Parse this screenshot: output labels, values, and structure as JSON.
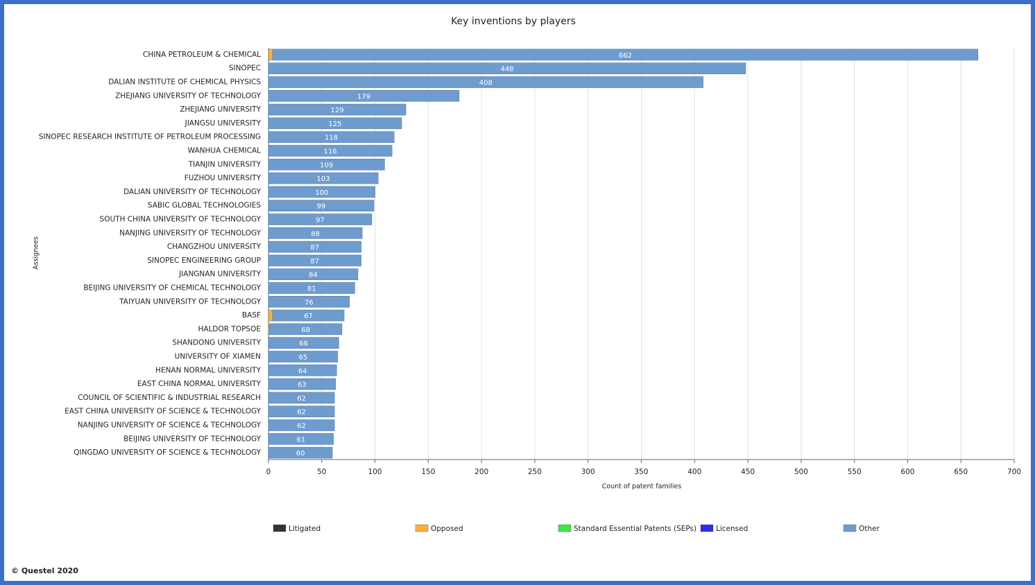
{
  "chart_data": {
    "type": "stacked-bar-horizontal",
    "title": "Key inventions by players",
    "x_label": "Count of patent families",
    "y_label": "Assignees",
    "footer": "© Questel 2020",
    "categories": [
      "CHINA PETROLEUM & CHEMICAL",
      "SINOPEC",
      "DALIAN INSTITUTE OF CHEMICAL PHYSICS",
      "ZHEJIANG UNIVERSITY OF TECHNOLOGY",
      "ZHEJIANG UNIVERSITY",
      "JIANGSU UNIVERSITY",
      "SINOPEC RESEARCH INSTITUTE OF PETROLEUM PROCESSING",
      "WANHUA CHEMICAL",
      "TIANJIN UNIVERSITY",
      "FUZHOU UNIVERSITY",
      "DALIAN UNIVERSITY OF TECHNOLOGY",
      "SABIC GLOBAL TECHNOLOGIES",
      "SOUTH CHINA UNIVERSITY OF TECHNOLOGY",
      "NANJING UNIVERSITY OF TECHNOLOGY",
      "CHANGZHOU UNIVERSITY",
      "SINOPEC ENGINEERING GROUP",
      "JIANGNAN UNIVERSITY",
      "BEIJING UNIVERSITY OF CHEMICAL TECHNOLOGY",
      "TAIYUAN UNIVERSITY OF TECHNOLOGY",
      "BASF",
      "HALDOR TOPSOE",
      "SHANDONG UNIVERSITY",
      "UNIVERSITY OF XIAMEN",
      "HENAN NORMAL UNIVERSITY",
      "EAST CHINA NORMAL UNIVERSITY",
      "COUNCIL OF SCIENTIFIC & INDUSTRIAL RESEARCH",
      "EAST CHINA UNIVERSITY OF SCIENCE & TECHNOLOGY",
      "NANJING UNIVERSITY OF SCIENCE & TECHNOLOGY",
      "BEIJING UNIVERSITY OF TECHNOLOGY",
      "QINGDAO UNIVERSITY OF SCIENCE & TECHNOLOGY"
    ],
    "series": [
      {
        "name": "Litigated",
        "color": "#333333",
        "values": [
          0,
          0,
          0,
          0,
          0,
          0,
          0,
          0,
          0,
          0,
          0,
          0,
          0,
          0,
          0,
          0,
          0,
          0,
          0,
          0,
          0,
          0,
          0,
          0,
          0,
          0,
          0,
          0,
          0,
          0
        ]
      },
      {
        "name": "Opposed",
        "color": "#f8b13a",
        "values": [
          4,
          0,
          0,
          0,
          0,
          0,
          0,
          0,
          0,
          0,
          0,
          0,
          0,
          0,
          0,
          0,
          0,
          0,
          0,
          4,
          1,
          0,
          0,
          0,
          0,
          0,
          0,
          0,
          0,
          0
        ]
      },
      {
        "name": "Standard Essential Patents (SEPs)",
        "color": "#3ee83e",
        "values": [
          0,
          0,
          0,
          0,
          0,
          0,
          0,
          0,
          0,
          0,
          0,
          0,
          0,
          0,
          0,
          0,
          0,
          0,
          0,
          0,
          0,
          0,
          0,
          0,
          0,
          0,
          0,
          0,
          0,
          0
        ]
      },
      {
        "name": "Licensed",
        "color": "#2e2ee8",
        "values": [
          0,
          0,
          0,
          0,
          0,
          0,
          0,
          0,
          0,
          0,
          0,
          0,
          0,
          0,
          0,
          0,
          0,
          0,
          0,
          0,
          0,
          0,
          0,
          0,
          0,
          0,
          0,
          0,
          0,
          0
        ]
      },
      {
        "name": "Other",
        "color": "#6f9ccf",
        "values": [
          662,
          448,
          408,
          179,
          129,
          125,
          118,
          116,
          109,
          103,
          100,
          99,
          97,
          88,
          87,
          87,
          84,
          81,
          76,
          67,
          68,
          66,
          65,
          64,
          63,
          62,
          62,
          62,
          61,
          60
        ]
      }
    ],
    "xlim": [
      0,
      700
    ],
    "xticks": [
      0,
      50,
      100,
      150,
      200,
      250,
      300,
      350,
      400,
      450,
      500,
      550,
      600,
      650,
      700
    ],
    "grid": true,
    "legend": "bottom"
  }
}
